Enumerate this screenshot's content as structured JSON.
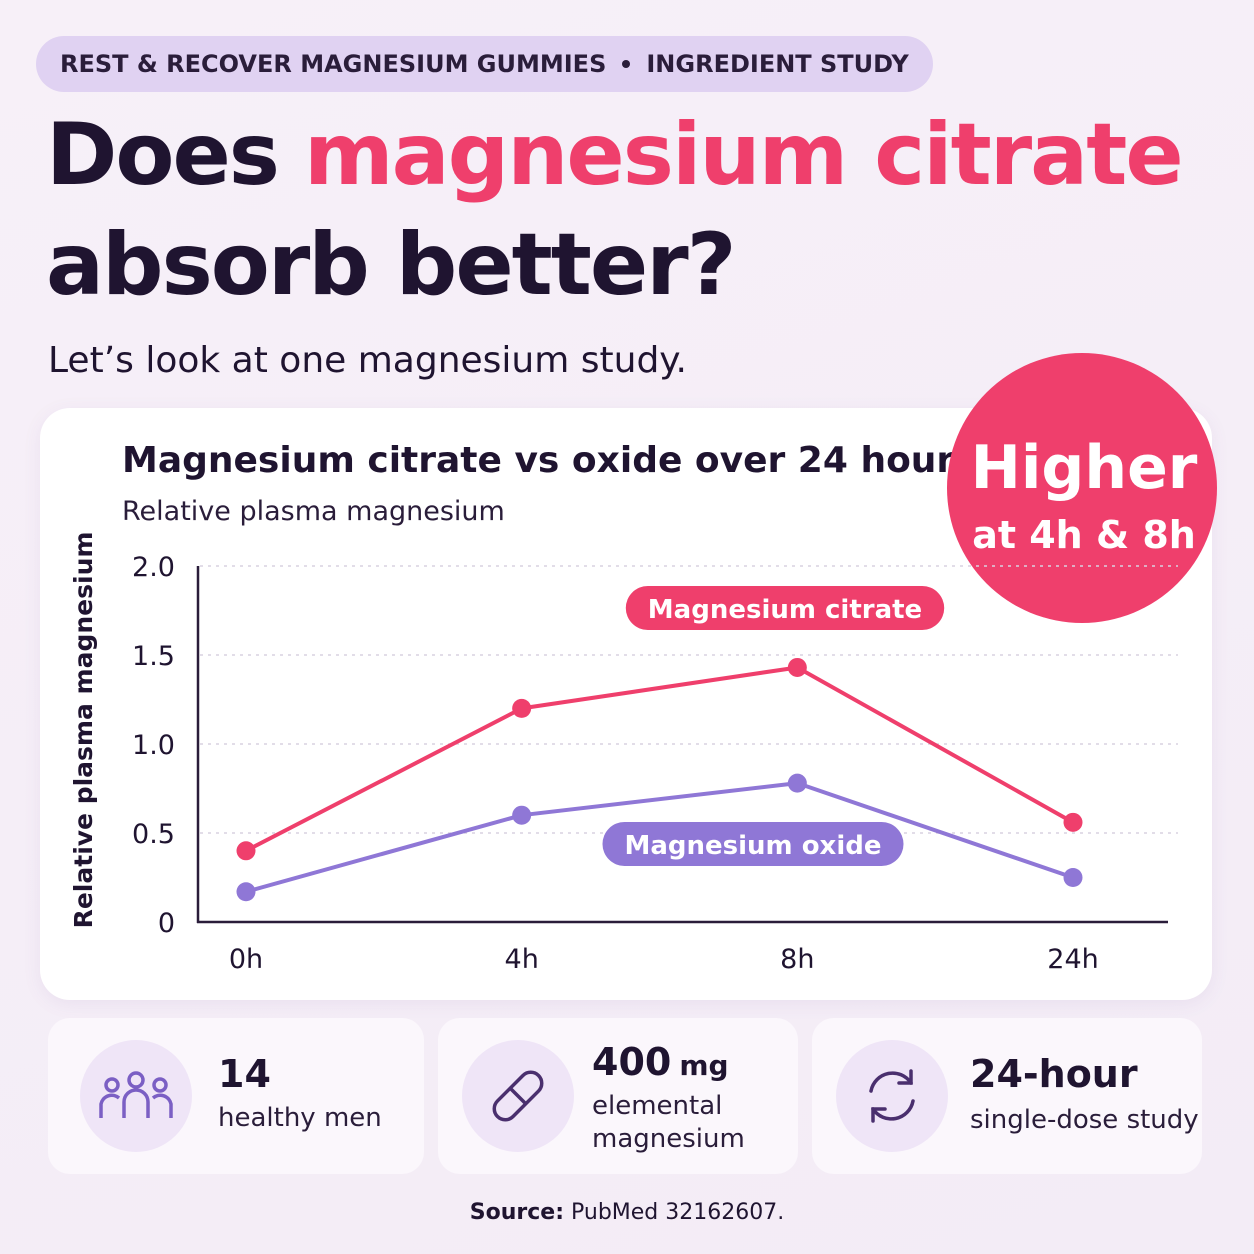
{
  "header": {
    "badge": [
      "REST & RECOVER MAGNESIUM GUMMIES",
      "INGREDIENT STUDY"
    ],
    "title": [
      "Does",
      "magnesium citrate",
      "absorb better?"
    ],
    "subtitle": "Let’s look at one magnesium study."
  },
  "chart_data": {
    "type": "line",
    "title": "Magnesium citrate vs oxide over 24 hours",
    "subtitle": "Relative plasma magnesium",
    "y_label": "Relative plasma magnesium",
    "categories": [
      "0h",
      "4h",
      "8h",
      "24h"
    ],
    "series": [
      {
        "name": "Magnesium citrate",
        "color": "#ef3f6c",
        "values": [
          0.4,
          1.2,
          1.43,
          0.56
        ]
      },
      {
        "name": "Magnesium oxide",
        "color": "#8f77d6",
        "values": [
          0.17,
          0.6,
          0.78,
          0.25
        ]
      }
    ],
    "ylim": [
      0,
      2
    ],
    "yticks": [
      0,
      0.5,
      {
        "value": 1,
        "label": "1.0"
      },
      1.5,
      {
        "value": 2,
        "label": "2.0"
      }
    ],
    "grid": true
  },
  "callout": {
    "headline": "Higher",
    "detail": "at 4h & 8h"
  },
  "stats": [
    {
      "value": "14",
      "label": "healthy men"
    },
    {
      "value": "400",
      "unit": "mg",
      "label": "elemental magnesium"
    },
    {
      "value": "24-hour",
      "label": "single-dose study"
    }
  ],
  "source": {
    "label": "Source:",
    "text": "PubMed 32162607."
  }
}
